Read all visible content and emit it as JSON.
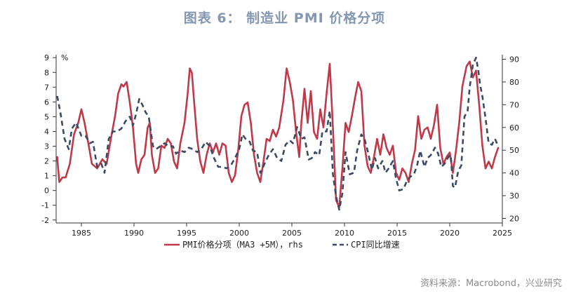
{
  "title": "图表 6： 制造业 PMI  价格分项",
  "source": "资料来源：Macrobond，兴业研究",
  "chart_data": {
    "type": "line",
    "xlim": [
      1982.6,
      2025.0
    ],
    "x_ticks": [
      1985,
      1990,
      1995,
      2000,
      2005,
      2010,
      2015,
      2020,
      2025
    ],
    "left_axis": {
      "unit_label": "%",
      "ylim": [
        -2.2,
        9.2
      ],
      "ticks": [
        -2,
        -1,
        0,
        1,
        2,
        3,
        4,
        5,
        6,
        7,
        8,
        9
      ]
    },
    "right_axis": {
      "ylim": [
        18,
        92
      ],
      "ticks": [
        20,
        30,
        40,
        50,
        60,
        70,
        80,
        90
      ]
    },
    "series": [
      {
        "name": "PMI价格分项（MA3 +5M），rhs",
        "axis": "right",
        "color": "#c0394a",
        "style": "solid",
        "points": [
          [
            1982.7,
            47
          ],
          [
            1982.9,
            36
          ],
          [
            1983.2,
            38
          ],
          [
            1983.5,
            38
          ],
          [
            1983.9,
            44
          ],
          [
            1984.3,
            57
          ],
          [
            1984.7,
            62
          ],
          [
            1985.0,
            68
          ],
          [
            1985.3,
            62
          ],
          [
            1985.7,
            52
          ],
          [
            1986.0,
            44
          ],
          [
            1986.5,
            42
          ],
          [
            1987.0,
            46
          ],
          [
            1987.4,
            44
          ],
          [
            1987.8,
            55
          ],
          [
            1988.2,
            65
          ],
          [
            1988.5,
            75
          ],
          [
            1988.8,
            79
          ],
          [
            1989.0,
            78
          ],
          [
            1989.3,
            80
          ],
          [
            1989.6,
            71
          ],
          [
            1989.9,
            60
          ],
          [
            1990.2,
            44
          ],
          [
            1990.4,
            40
          ],
          [
            1990.7,
            46
          ],
          [
            1991.0,
            48
          ],
          [
            1991.3,
            60
          ],
          [
            1991.5,
            62
          ],
          [
            1991.7,
            48
          ],
          [
            1992.0,
            40
          ],
          [
            1992.3,
            42
          ],
          [
            1992.6,
            52
          ],
          [
            1992.9,
            51
          ],
          [
            1993.2,
            55
          ],
          [
            1993.5,
            53
          ],
          [
            1993.8,
            45
          ],
          [
            1994.1,
            42
          ],
          [
            1994.4,
            53
          ],
          [
            1994.8,
            62
          ],
          [
            1995.1,
            75
          ],
          [
            1995.3,
            86
          ],
          [
            1995.5,
            84
          ],
          [
            1995.7,
            72
          ],
          [
            1996.0,
            55
          ],
          [
            1996.3,
            45
          ],
          [
            1996.6,
            40
          ],
          [
            1996.9,
            48
          ],
          [
            1997.2,
            53
          ],
          [
            1997.5,
            49
          ],
          [
            1997.8,
            53
          ],
          [
            1998.1,
            48
          ],
          [
            1998.4,
            53
          ],
          [
            1998.7,
            52
          ],
          [
            1999.0,
            40
          ],
          [
            1999.3,
            36
          ],
          [
            1999.6,
            39
          ],
          [
            1999.9,
            50
          ],
          [
            2000.2,
            65
          ],
          [
            2000.5,
            70
          ],
          [
            2000.8,
            71
          ],
          [
            2001.1,
            62
          ],
          [
            2001.4,
            48
          ],
          [
            2001.7,
            40
          ],
          [
            2002.0,
            36
          ],
          [
            2002.3,
            45
          ],
          [
            2002.6,
            55
          ],
          [
            2002.9,
            54
          ],
          [
            2003.2,
            59
          ],
          [
            2003.5,
            56
          ],
          [
            2003.8,
            60
          ],
          [
            2004.2,
            72
          ],
          [
            2004.5,
            86
          ],
          [
            2004.8,
            80
          ],
          [
            2005.1,
            72
          ],
          [
            2005.4,
            58
          ],
          [
            2005.7,
            47
          ],
          [
            2005.9,
            62
          ],
          [
            2006.2,
            77
          ],
          [
            2006.5,
            62
          ],
          [
            2006.8,
            76
          ],
          [
            2007.1,
            58
          ],
          [
            2007.4,
            55
          ],
          [
            2007.7,
            68
          ],
          [
            2008.0,
            60
          ],
          [
            2008.3,
            75
          ],
          [
            2008.6,
            88
          ],
          [
            2008.9,
            60
          ],
          [
            2009.2,
            28
          ],
          [
            2009.5,
            25
          ],
          [
            2009.8,
            42
          ],
          [
            2010.1,
            62
          ],
          [
            2010.4,
            58
          ],
          [
            2010.7,
            65
          ],
          [
            2011.0,
            73
          ],
          [
            2011.3,
            80
          ],
          [
            2011.6,
            76
          ],
          [
            2011.9,
            52
          ],
          [
            2012.2,
            43
          ],
          [
            2012.5,
            40
          ],
          [
            2012.8,
            47
          ],
          [
            2013.1,
            55
          ],
          [
            2013.4,
            48
          ],
          [
            2013.7,
            57
          ],
          [
            2014.0,
            51
          ],
          [
            2014.3,
            48
          ],
          [
            2014.6,
            52
          ],
          [
            2014.9,
            40
          ],
          [
            2015.2,
            37
          ],
          [
            2015.5,
            42
          ],
          [
            2015.8,
            40
          ],
          [
            2016.1,
            36
          ],
          [
            2016.4,
            44
          ],
          [
            2016.7,
            50
          ],
          [
            2017.0,
            65
          ],
          [
            2017.3,
            55
          ],
          [
            2017.6,
            59
          ],
          [
            2017.9,
            60
          ],
          [
            2018.2,
            55
          ],
          [
            2018.5,
            61
          ],
          [
            2018.8,
            70
          ],
          [
            2019.1,
            51
          ],
          [
            2019.4,
            44
          ],
          [
            2019.7,
            47
          ],
          [
            2020.0,
            49
          ],
          [
            2020.3,
            40
          ],
          [
            2020.6,
            50
          ],
          [
            2020.9,
            62
          ],
          [
            2021.2,
            78
          ],
          [
            2021.6,
            87
          ],
          [
            2021.9,
            89
          ],
          [
            2022.2,
            82
          ],
          [
            2022.5,
            85
          ],
          [
            2022.8,
            70
          ],
          [
            2023.1,
            52
          ],
          [
            2023.4,
            42
          ],
          [
            2023.7,
            45
          ],
          [
            2024.0,
            42
          ],
          [
            2024.3,
            47
          ],
          [
            2024.6,
            51
          ]
        ]
      },
      {
        "name": "CPI同比增速",
        "axis": "left",
        "color": "#3d4a63",
        "style": "dashed",
        "points": [
          [
            1982.7,
            6.4
          ],
          [
            1983.0,
            5.3
          ],
          [
            1983.4,
            3.5
          ],
          [
            1983.8,
            2.8
          ],
          [
            1984.1,
            4.2
          ],
          [
            1984.5,
            4.6
          ],
          [
            1985.0,
            3.7
          ],
          [
            1985.4,
            3.7
          ],
          [
            1985.8,
            3.2
          ],
          [
            1986.1,
            3.3
          ],
          [
            1986.5,
            1.6
          ],
          [
            1986.9,
            1.8
          ],
          [
            1987.2,
            1.2
          ],
          [
            1987.6,
            3.5
          ],
          [
            1988.0,
            4.0
          ],
          [
            1988.4,
            4.0
          ],
          [
            1988.8,
            4.2
          ],
          [
            1989.2,
            4.7
          ],
          [
            1989.6,
            5.0
          ],
          [
            1989.9,
            4.4
          ],
          [
            1990.2,
            5.2
          ],
          [
            1990.5,
            6.2
          ],
          [
            1990.8,
            5.8
          ],
          [
            1991.1,
            5.3
          ],
          [
            1991.4,
            5.0
          ],
          [
            1991.8,
            3.0
          ],
          [
            1992.1,
            2.8
          ],
          [
            1992.5,
            3.0
          ],
          [
            1992.9,
            3.2
          ],
          [
            1993.3,
            3.0
          ],
          [
            1993.7,
            3.0
          ],
          [
            1994.0,
            2.5
          ],
          [
            1994.4,
            2.7
          ],
          [
            1994.8,
            2.6
          ],
          [
            1995.2,
            2.9
          ],
          [
            1995.6,
            2.8
          ],
          [
            1996.0,
            2.6
          ],
          [
            1996.4,
            2.8
          ],
          [
            1996.8,
            3.3
          ],
          [
            1997.2,
            3.0
          ],
          [
            1997.6,
            2.2
          ],
          [
            1998.0,
            1.6
          ],
          [
            1998.4,
            1.6
          ],
          [
            1998.8,
            1.5
          ],
          [
            1999.2,
            1.7
          ],
          [
            1999.6,
            2.2
          ],
          [
            2000.0,
            2.8
          ],
          [
            2000.3,
            3.8
          ],
          [
            2000.7,
            3.4
          ],
          [
            2001.0,
            3.3
          ],
          [
            2001.3,
            2.7
          ],
          [
            2001.7,
            2.6
          ],
          [
            2002.0,
            1.2
          ],
          [
            2002.4,
            1.8
          ],
          [
            2002.8,
            2.4
          ],
          [
            2003.2,
            2.8
          ],
          [
            2003.6,
            2.2
          ],
          [
            2004.0,
            2.0
          ],
          [
            2004.4,
            3.1
          ],
          [
            2004.8,
            3.4
          ],
          [
            2005.1,
            3.2
          ],
          [
            2005.5,
            4.3
          ],
          [
            2005.9,
            3.5
          ],
          [
            2006.2,
            3.6
          ],
          [
            2006.6,
            2.1
          ],
          [
            2006.9,
            2.2
          ],
          [
            2007.2,
            2.6
          ],
          [
            2007.6,
            2.4
          ],
          [
            2007.9,
            4.0
          ],
          [
            2008.3,
            4.0
          ],
          [
            2008.6,
            5.4
          ],
          [
            2008.9,
            1.1
          ],
          [
            2009.2,
            -0.4
          ],
          [
            2009.5,
            -1.3
          ],
          [
            2009.8,
            -0.2
          ],
          [
            2010.1,
            2.6
          ],
          [
            2010.5,
            1.1
          ],
          [
            2010.9,
            1.2
          ],
          [
            2011.2,
            2.7
          ],
          [
            2011.6,
            3.8
          ],
          [
            2011.9,
            3.5
          ],
          [
            2012.2,
            2.7
          ],
          [
            2012.6,
            1.4
          ],
          [
            2012.9,
            2.2
          ],
          [
            2013.2,
            1.5
          ],
          [
            2013.6,
            2.0
          ],
          [
            2013.9,
            1.2
          ],
          [
            2014.2,
            1.5
          ],
          [
            2014.6,
            2.0
          ],
          [
            2014.9,
            0.8
          ],
          [
            2015.2,
            0.0
          ],
          [
            2015.6,
            0.1
          ],
          [
            2015.9,
            0.6
          ],
          [
            2016.2,
            0.9
          ],
          [
            2016.6,
            1.1
          ],
          [
            2016.9,
            1.7
          ],
          [
            2017.2,
            2.7
          ],
          [
            2017.6,
            1.6
          ],
          [
            2017.9,
            2.2
          ],
          [
            2018.2,
            2.4
          ],
          [
            2018.6,
            2.9
          ],
          [
            2018.9,
            2.5
          ],
          [
            2019.2,
            1.6
          ],
          [
            2019.5,
            1.8
          ],
          [
            2019.9,
            2.3
          ],
          [
            2020.1,
            2.4
          ],
          [
            2020.3,
            0.3
          ],
          [
            2020.5,
            0.2
          ],
          [
            2020.8,
            1.3
          ],
          [
            2021.1,
            1.7
          ],
          [
            2021.4,
            5.0
          ],
          [
            2021.7,
            5.4
          ],
          [
            2021.9,
            7.0
          ],
          [
            2022.2,
            8.5
          ],
          [
            2022.5,
            9.0
          ],
          [
            2022.7,
            8.2
          ],
          [
            2022.9,
            7.1
          ],
          [
            2023.1,
            6.4
          ],
          [
            2023.4,
            4.9
          ],
          [
            2023.7,
            3.2
          ],
          [
            2024.0,
            3.1
          ],
          [
            2024.3,
            3.5
          ],
          [
            2024.6,
            3.0
          ]
        ]
      }
    ]
  }
}
